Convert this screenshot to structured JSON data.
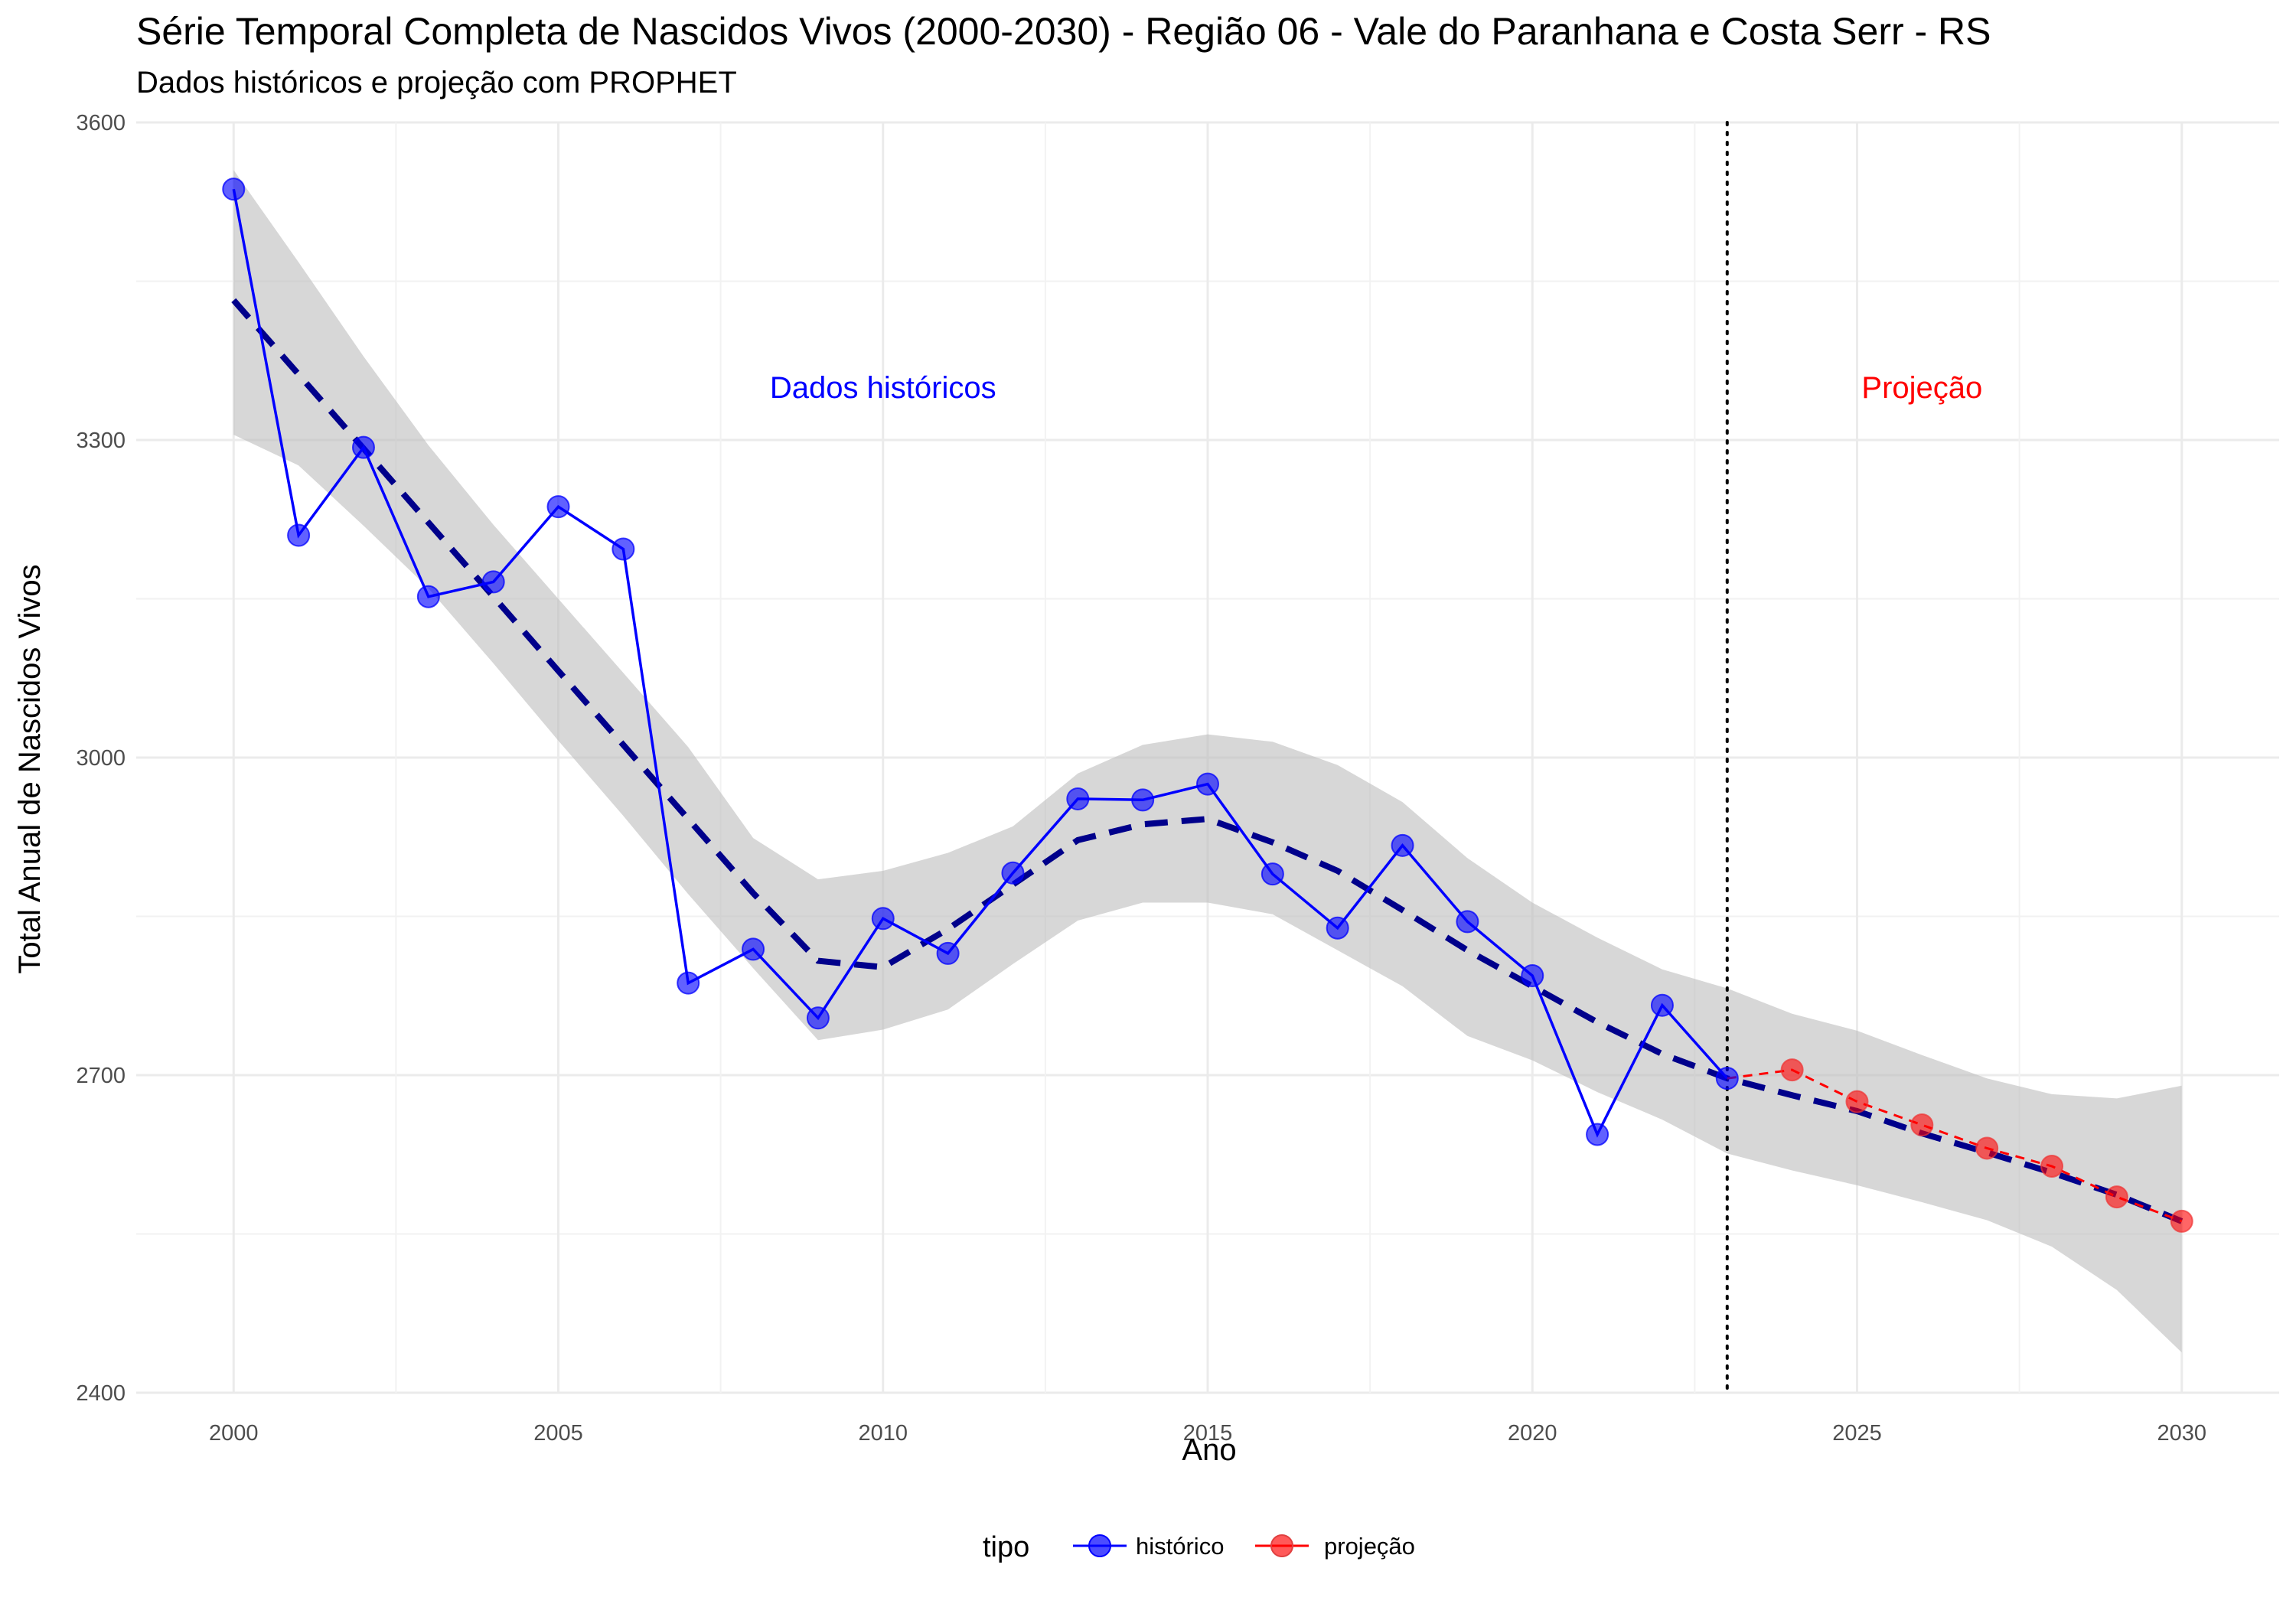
{
  "chart_data": {
    "type": "line",
    "title": "Série Temporal Completa de Nascidos Vivos (2000-2030) -  Região 06 - Vale do Paranhana e Costa Serr - RS",
    "subtitle": "Dados históricos e projeção com PROPHET",
    "xlabel": "Ano",
    "ylabel": "Total Anual de Nascidos Vivos",
    "xlim": [
      1998.5,
      2031.5
    ],
    "ylim": [
      2400,
      3600
    ],
    "x_ticks": [
      2000,
      2005,
      2010,
      2015,
      2020,
      2025,
      2030
    ],
    "y_ticks": [
      2400,
      2700,
      3000,
      3300,
      3600
    ],
    "grid": true,
    "legend": {
      "title": "tipo",
      "position": "bottom",
      "entries": [
        {
          "label": "histórico",
          "color": "#0000ff"
        },
        {
          "label": "projeção",
          "color": "#ff0000"
        }
      ]
    },
    "annotations": [
      {
        "text": "Dados históricos",
        "x": 2010,
        "y": 3350,
        "color": "#0000ff"
      },
      {
        "text": "Projeção",
        "x": 2026,
        "y": 3350,
        "color": "#ff0000"
      }
    ],
    "vline": {
      "x": 2023,
      "style": "dotted",
      "color": "#000000"
    },
    "series": [
      {
        "name": "histórico",
        "color": "#0000ff",
        "x": [
          2000,
          2001,
          2002,
          2003,
          2004,
          2005,
          2006,
          2007,
          2008,
          2009,
          2010,
          2011,
          2012,
          2013,
          2014,
          2015,
          2016,
          2017,
          2018,
          2019,
          2020,
          2021,
          2022,
          2023
        ],
        "values": [
          3537,
          3210,
          3293,
          3152,
          3166,
          3237,
          3197,
          2787,
          2819,
          2754,
          2848,
          2815,
          2891,
          2961,
          2960,
          2975,
          2890,
          2839,
          2917,
          2845,
          2794,
          2644,
          2766,
          2697
        ]
      },
      {
        "name": "projeção",
        "color": "#ff0000",
        "x": [
          2023,
          2024,
          2025,
          2026,
          2027,
          2028,
          2029,
          2030
        ],
        "values": [
          2697,
          2705,
          2675,
          2653,
          2631,
          2614,
          2585,
          2562
        ]
      }
    ],
    "trend": {
      "color": "#00008b",
      "style": "dashed",
      "x": [
        2000,
        2001,
        2002,
        2003,
        2004,
        2005,
        2006,
        2007,
        2008,
        2009,
        2010,
        2011,
        2012,
        2013,
        2014,
        2015,
        2016,
        2017,
        2018,
        2019,
        2020,
        2021,
        2022,
        2023,
        2024,
        2025,
        2026,
        2027,
        2028,
        2029,
        2030
      ],
      "values": [
        3432,
        3362,
        3292,
        3222,
        3152,
        3082,
        3012,
        2942,
        2872,
        2808,
        2802,
        2838,
        2880,
        2922,
        2937,
        2942,
        2920,
        2893,
        2856,
        2818,
        2784,
        2750,
        2720,
        2697,
        2681,
        2666,
        2645,
        2627,
        2608,
        2587,
        2562
      ]
    },
    "confidence_band": {
      "color": "#bebebe",
      "x": [
        2000,
        2001,
        2002,
        2003,
        2004,
        2005,
        2006,
        2007,
        2008,
        2009,
        2010,
        2011,
        2012,
        2013,
        2014,
        2015,
        2016,
        2017,
        2018,
        2019,
        2020,
        2021,
        2022,
        2023,
        2024,
        2025,
        2026,
        2027,
        2028,
        2029,
        2030
      ],
      "upper": [
        3555,
        3468,
        3379,
        3295,
        3220,
        3150,
        3080,
        3010,
        2924,
        2885,
        2893,
        2910,
        2935,
        2985,
        3012,
        3022,
        3015,
        2993,
        2958,
        2905,
        2863,
        2830,
        2800,
        2782,
        2758,
        2742,
        2719,
        2697,
        2682,
        2678,
        2690
      ],
      "lower": [
        3305,
        3276,
        3219,
        3160,
        3089,
        3016,
        2945,
        2871,
        2801,
        2733,
        2743,
        2762,
        2805,
        2846,
        2863,
        2863,
        2852,
        2818,
        2784,
        2737,
        2714,
        2684,
        2658,
        2626,
        2610,
        2596,
        2580,
        2563,
        2538,
        2497,
        2438
      ]
    }
  }
}
